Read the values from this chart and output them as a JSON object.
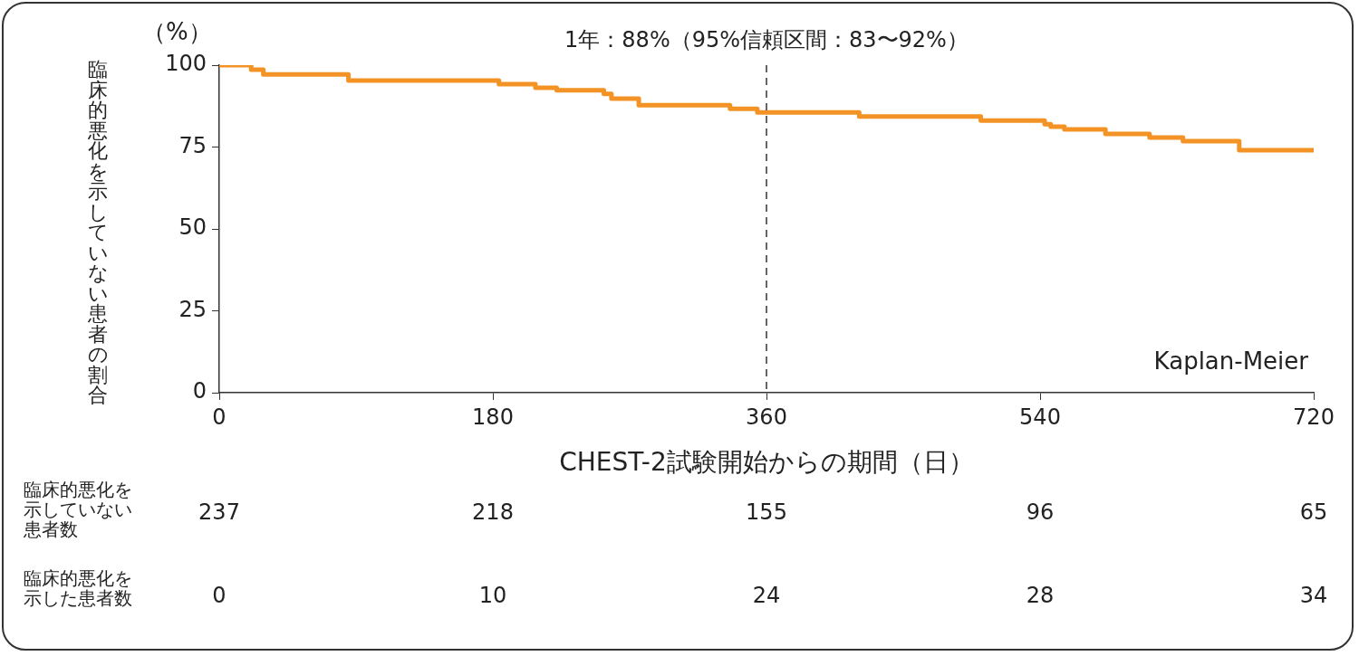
{
  "chart_data": {
    "type": "step",
    "ylabel": "臨床的悪化を示していない患者の割合",
    "xlabel": "CHEST-2試験開始からの期間（日）",
    "x": [
      0,
      21,
      29,
      85,
      184,
      208,
      222,
      253,
      258,
      276,
      336,
      354,
      421,
      501,
      543,
      547,
      556,
      583,
      612,
      634,
      671,
      720
    ],
    "series": [
      {
        "color": "#f39325",
        "values": [
          100,
          98.6,
          97.2,
          95.3,
          94.2,
          93.1,
          92.3,
          91.2,
          89.8,
          87.8,
          86.7,
          85.6,
          84.3,
          83.1,
          82.0,
          81.2,
          80.4,
          79.0,
          77.9,
          76.8,
          74.0,
          74.0
        ]
      }
    ],
    "xlim": [
      0,
      720
    ],
    "xticks": [
      0,
      180,
      360,
      540,
      720
    ],
    "ylim": [
      0,
      100
    ],
    "yticks": [
      0,
      25,
      50,
      75,
      100
    ],
    "grid": false,
    "legend": false,
    "ref_lines": [
      {
        "axis": "x",
        "value": 360,
        "label": "1年：88%（95%信頼区間：83〜92%）",
        "color": "#333333",
        "line_style": "dashed"
      }
    ],
    "annotations": [
      "（%）",
      "Kaplan-Meier",
      "臨床的悪化を示していない患者数",
      "237",
      "218",
      "155",
      "96",
      "65",
      "臨床的悪化を示した患者数",
      "0",
      "10",
      "24",
      "28",
      "34"
    ]
  }
}
